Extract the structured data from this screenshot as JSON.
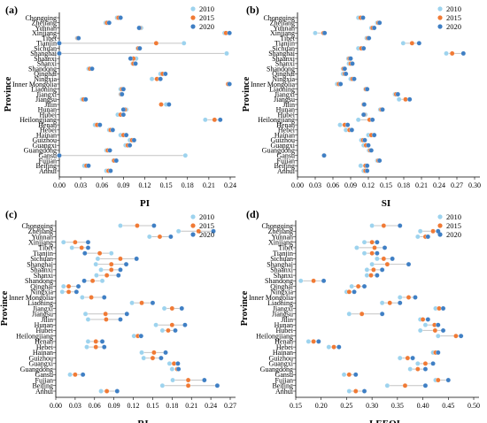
{
  "figure": {
    "y_axis_title": "Province",
    "legend_labels": [
      "2010",
      "2015",
      "2020"
    ],
    "series_colors": [
      "#9dd3ee",
      "#f07a35",
      "#3f7fc4"
    ],
    "connector_color": "#c4c4c4",
    "provinces": [
      "Chongqing",
      "Zhejiang",
      "Yunnan",
      "Xinjiang",
      "Tibet",
      "Tianjin",
      "Sichuan",
      "Shanghai",
      "Shaanxi",
      "Shanxi",
      "Shandong",
      "Qinghai",
      "Ningxia",
      "Inner Mongolia",
      "Liaoning",
      "Jiangxi",
      "Jiangsu",
      "Jilin",
      "Hunan",
      "Hubei",
      "Heilongjiang",
      "Henan",
      "Hebei",
      "Hainan",
      "Guizhou",
      "Guangxi",
      "Guangdong",
      "Gansu",
      "Fujian",
      "Beijing",
      "Anhui"
    ]
  },
  "chart_data": [
    {
      "type": "scatter",
      "panel_label": "(a)",
      "xlabel": "PI",
      "ylabel": "Province",
      "xlim": [
        0,
        0.24
      ],
      "xticks": [
        "0.00",
        "0.03",
        "0.06",
        "0.09",
        "0.12",
        "0.15",
        "0.18",
        "0.21",
        "0.24"
      ],
      "categories": [
        "Chongqing",
        "Zhejiang",
        "Yunnan",
        "Xinjiang",
        "Tibet",
        "Tianjin",
        "Sichuan",
        "Shanghai",
        "Shaanxi",
        "Shanxi",
        "Shandong",
        "Qinghai",
        "Ningxia",
        "Inner Mongolia",
        "Liaoning",
        "Jiangxi",
        "Jiangsu",
        "Jilin",
        "Hunan",
        "Hubei",
        "Heilongjiang",
        "Henan",
        "Hebei",
        "Hainan",
        "Guizhou",
        "Guangxi",
        "Guangdong",
        "Gansu",
        "Fujian",
        "Beijing",
        "Anhui"
      ],
      "series": [
        {
          "name": "2010",
          "values": [
            0.081,
            0.065,
            0.115,
            0.232,
            0.025,
            0.175,
            0.11,
            0.235,
            0.108,
            0.103,
            0.041,
            0.142,
            0.13,
            0.237,
            0.086,
            0.086,
            0.032,
            0.15,
            0.094,
            0.082,
            0.205,
            0.05,
            0.07,
            0.086,
            0.099,
            0.093,
            0.066,
            0.177,
            0.076,
            0.035,
            0.066
          ]
        },
        {
          "name": "2015",
          "values": [
            0.083,
            0.067,
            0.113,
            0.234,
            0.026,
            0.136,
            0.111,
            0.0,
            0.104,
            0.104,
            0.043,
            0.145,
            0.137,
            0.237,
            0.088,
            0.087,
            0.034,
            0.143,
            0.092,
            0.086,
            0.218,
            0.053,
            0.072,
            0.09,
            0.102,
            0.096,
            0.068,
            0.0,
            0.077,
            0.038,
            0.069
          ]
        },
        {
          "name": "2020",
          "values": [
            0.086,
            0.07,
            0.112,
            0.239,
            0.027,
            0.0,
            0.113,
            0.0,
            0.1,
            0.107,
            0.046,
            0.149,
            0.142,
            0.239,
            0.09,
            0.088,
            0.037,
            0.154,
            0.09,
            0.09,
            0.226,
            0.057,
            0.075,
            0.094,
            0.105,
            0.099,
            0.071,
            0.0,
            0.08,
            0.041,
            0.072
          ]
        }
      ]
    },
    {
      "type": "scatter",
      "panel_label": "(b)",
      "xlabel": "SI",
      "ylabel": "Province",
      "xlim": [
        0,
        0.3
      ],
      "xticks": [
        "0.00",
        "0.03",
        "0.06",
        "0.09",
        "0.12",
        "0.15",
        "0.18",
        "0.21",
        "0.24",
        "0.27",
        "0.30"
      ],
      "categories": [
        "Chongqing",
        "Zhejiang",
        "Yunnan",
        "Xinjiang",
        "Tibet",
        "Tianjin",
        "Sichuan",
        "Shanghai",
        "Shaanxi",
        "Shanxi",
        "Shandong",
        "Qinghai",
        "Ningxia",
        "Inner Mongolia",
        "Liaoning",
        "Jiangxi",
        "Jiangsu",
        "Jilin",
        "Hunan",
        "Hubei",
        "Heilongjiang",
        "Henan",
        "Hebei",
        "Hainan",
        "Guizhou",
        "Guangxi",
        "Guangdong",
        "Gansu",
        "Fujian",
        "Beijing",
        "Anhui"
      ],
      "series": [
        {
          "name": "2010",
          "values": [
            0.103,
            0.135,
            0.125,
            0.03,
            0.117,
            0.179,
            0.103,
            0.252,
            0.086,
            0.087,
            0.077,
            0.077,
            0.09,
            0.067,
            0.115,
            0.165,
            0.172,
            0.112,
            0.14,
            0.115,
            0.103,
            0.072,
            0.082,
            0.12,
            0.108,
            0.112,
            0.121,
            0.045,
            0.135,
            0.107,
            0.112
          ]
        },
        {
          "name": "2015",
          "values": [
            0.107,
            0.137,
            0.127,
            0.044,
            0.119,
            0.194,
            0.108,
            0.262,
            0.088,
            0.09,
            0.078,
            0.08,
            0.093,
            0.07,
            0.116,
            0.167,
            0.183,
            0.112,
            0.142,
            0.113,
            0.122,
            0.08,
            0.088,
            0.125,
            0.111,
            0.116,
            0.123,
            0.045,
            0.137,
            0.115,
            0.115
          ]
        },
        {
          "name": "2020",
          "values": [
            0.111,
            0.139,
            0.13,
            0.046,
            0.121,
            0.206,
            0.112,
            0.281,
            0.09,
            0.093,
            0.08,
            0.082,
            0.096,
            0.073,
            0.118,
            0.17,
            0.19,
            0.113,
            0.144,
            0.112,
            0.127,
            0.085,
            0.092,
            0.13,
            0.114,
            0.12,
            0.125,
            0.045,
            0.139,
            0.118,
            0.118
          ]
        }
      ]
    },
    {
      "type": "scatter",
      "panel_label": "(c)",
      "xlabel": "RI",
      "ylabel": "Province",
      "xlim": [
        0,
        0.27
      ],
      "xticks": [
        "0.00",
        "0.03",
        "0.06",
        "0.09",
        "0.12",
        "0.15",
        "0.18",
        "0.21",
        "0.24",
        "0.27"
      ],
      "categories": [
        "Chongqing",
        "Zhejiang",
        "Yunnan",
        "Xinjiang",
        "Tibet",
        "Tianjin",
        "Sichuan",
        "Shanghai",
        "Shaanxi",
        "Shanxi",
        "Shandong",
        "Qinghai",
        "Ningxia",
        "Inner Mongolia",
        "Liaoning",
        "Jiangxi",
        "Jiangsu",
        "Jilin",
        "Hunan",
        "Hubei",
        "Heilongjiang",
        "Henan",
        "Hebei",
        "Hainan",
        "Guizhou",
        "Guangxi",
        "Guangdong",
        "Gansu",
        "Fujian",
        "Beijing",
        "Anhui"
      ],
      "series": [
        {
          "name": "2010",
          "values": [
            0.1,
            0.19,
            0.145,
            0.012,
            0.025,
            0.086,
            0.065,
            0.062,
            0.07,
            0.063,
            0.072,
            0.012,
            0.01,
            0.041,
            0.118,
            0.168,
            0.046,
            0.05,
            0.155,
            0.165,
            0.121,
            0.05,
            0.048,
            0.133,
            0.136,
            0.176,
            0.18,
            0.022,
            0.181,
            0.165,
            0.07
          ]
        },
        {
          "name": "2015",
          "values": [
            0.126,
            0.221,
            0.161,
            0.03,
            0.04,
            0.068,
            0.1,
            0.086,
            0.086,
            0.079,
            0.057,
            0.02,
            0.02,
            0.055,
            0.133,
            0.18,
            0.077,
            0.078,
            0.18,
            0.174,
            0.127,
            0.062,
            0.062,
            0.152,
            0.15,
            0.183,
            0.188,
            0.03,
            0.205,
            0.205,
            0.079
          ]
        },
        {
          "name": "2020",
          "values": [
            0.152,
            0.244,
            0.178,
            0.05,
            0.05,
            0.045,
            0.125,
            0.109,
            0.1,
            0.097,
            0.044,
            0.035,
            0.032,
            0.075,
            0.15,
            0.195,
            0.11,
            0.1,
            0.2,
            0.185,
            0.132,
            0.072,
            0.075,
            0.17,
            0.163,
            0.189,
            0.19,
            0.042,
            0.23,
            0.25,
            0.095
          ]
        }
      ]
    },
    {
      "type": "scatter",
      "panel_label": "(d)",
      "xlabel": "LEEQI",
      "ylabel": "Province",
      "xlim": [
        0.15,
        0.5
      ],
      "xticks": [
        "0.15",
        "0.20",
        "0.25",
        "0.30",
        "0.35",
        "0.40",
        "0.45",
        "0.50"
      ],
      "categories": [
        "Chongqing",
        "Zhejiang",
        "Yunnan",
        "Xinjiang",
        "Tibet",
        "Tianjin",
        "Sichuan",
        "Shanghai",
        "Shaanxi",
        "Shanxi",
        "Shandong",
        "Qinghai",
        "Ningxia",
        "Inner Mongolia",
        "Liaoning",
        "Jiangxi",
        "Jiangsu",
        "Jilin",
        "Hunan",
        "Hubei",
        "Heilongjiang",
        "Henan",
        "Hebei",
        "Hainan",
        "Guizhou",
        "Guangxi",
        "Guangdong",
        "Gansu",
        "Fujian",
        "Beijing",
        "Anhui"
      ],
      "series": [
        {
          "name": "2010",
          "values": [
            0.3,
            0.395,
            0.39,
            0.285,
            0.27,
            0.285,
            0.31,
            0.3,
            0.29,
            0.29,
            0.16,
            0.26,
            0.25,
            0.355,
            0.32,
            0.425,
            0.255,
            0.395,
            0.405,
            0.395,
            0.43,
            0.175,
            0.215,
            0.42,
            0.355,
            0.39,
            0.375,
            0.245,
            0.425,
            0.33,
            0.255
          ]
        },
        {
          "name": "2015",
          "values": [
            0.323,
            0.42,
            0.405,
            0.3,
            0.305,
            0.3,
            0.323,
            0.33,
            0.303,
            0.298,
            0.185,
            0.273,
            0.255,
            0.372,
            0.335,
            0.432,
            0.28,
            0.4,
            0.423,
            0.424,
            0.465,
            0.185,
            0.225,
            0.425,
            0.37,
            0.405,
            0.39,
            0.255,
            0.43,
            0.365,
            0.268
          ]
        },
        {
          "name": "2020",
          "values": [
            0.355,
            0.43,
            0.41,
            0.31,
            0.325,
            0.31,
            0.34,
            0.372,
            0.32,
            0.31,
            0.205,
            0.285,
            0.265,
            0.385,
            0.355,
            0.44,
            0.32,
            0.41,
            0.43,
            0.44,
            0.475,
            0.195,
            0.235,
            0.43,
            0.38,
            0.42,
            0.405,
            0.268,
            0.45,
            0.405,
            0.285
          ]
        }
      ]
    }
  ]
}
